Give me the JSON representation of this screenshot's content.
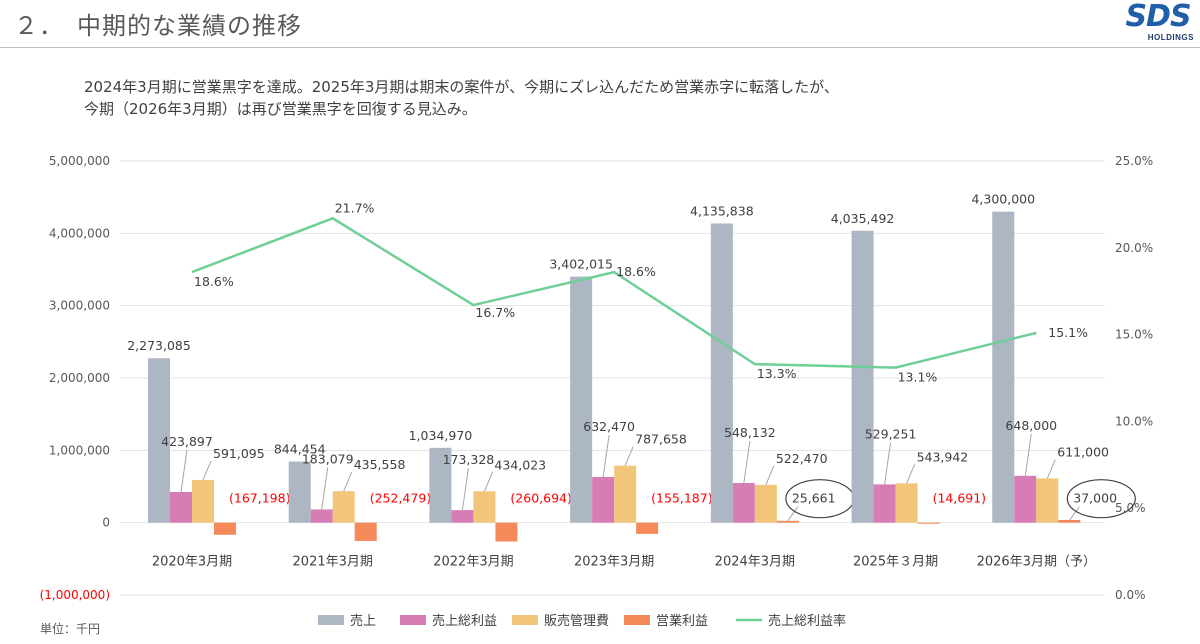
{
  "header": {
    "title": "２．　中期的な業績の推移",
    "logo": {
      "text": "SDS",
      "subtext": "HOLDINGS"
    },
    "line1": "2024年3月期に営業黒字を達成。2025年3月期は期末の案件が、今期にズレ込んだため営業赤字に転落したが、",
    "line2": "今期（2026年3月期）は再び営業黒字を回復する見込み。"
  },
  "footer": {
    "unit_note": "単位：千円"
  },
  "colors": {
    "revenue": "#adb6c3",
    "gross_profit": "#d67db5",
    "sga": "#f2c67a",
    "operating_profit": "#f4895a",
    "gross_margin": "#6fcf97",
    "negative_label": "#ff0000"
  },
  "chart_data": {
    "type": "bar",
    "categories": [
      "2020年3月期",
      "2021年3月期",
      "2022年3月期",
      "2023年3月期",
      "2024年3月期",
      "2025年３月期",
      "2026年3月期（予）"
    ],
    "series": [
      {
        "name": "売上",
        "values": [
          2273085,
          844454,
          1034970,
          3402015,
          4135838,
          4035492,
          4300000
        ],
        "labels": [
          "2,273,085",
          "844,454",
          "1,034,970",
          "3,402,015",
          "4,135,838",
          "4,035,492",
          "4,300,000"
        ]
      },
      {
        "name": "売上総利益",
        "values": [
          423897,
          183079,
          173328,
          632470,
          548132,
          529251,
          648000
        ],
        "labels": [
          "423,897",
          "183,079",
          "173,328",
          "632,470",
          "548,132",
          "529,251",
          "648,000"
        ]
      },
      {
        "name": "販売管理費",
        "values": [
          591095,
          435558,
          434023,
          787658,
          522470,
          543942,
          611000
        ],
        "labels": [
          "591,095",
          "435,558",
          "434,023",
          "787,658",
          "522,470",
          "543,942",
          "611,000"
        ]
      },
      {
        "name": "営業利益",
        "values": [
          -167198,
          -252479,
          -260694,
          -155187,
          25661,
          -14691,
          37000
        ],
        "labels": [
          "(167,198)",
          "(252,479)",
          "(260,694)",
          "(155,187)",
          "25,661",
          "(14,691)",
          "37,000"
        ]
      },
      {
        "name": "売上総利益率",
        "type": "line",
        "axis": "right",
        "values": [
          18.6,
          21.7,
          16.7,
          18.6,
          13.3,
          13.1,
          15.1
        ],
        "labels": [
          "18.6%",
          "21.7%",
          "16.7%",
          "18.6%",
          "13.3%",
          "13.1%",
          "15.1%"
        ]
      }
    ],
    "highlighted_labels": [
      "25,661",
      "37,000"
    ],
    "y_left": {
      "range": [
        -1000000,
        5000000
      ],
      "ticks": [
        "(1,000,000)",
        "0",
        "1,000,000",
        "2,000,000",
        "3,000,000",
        "4,000,000",
        "5,000,000"
      ]
    },
    "y_right": {
      "range": [
        0,
        25
      ],
      "ticks": [
        "0.0%",
        "5.0%",
        "10.0%",
        "15.0%",
        "20.0%",
        "25.0%"
      ]
    },
    "legend_position": "bottom",
    "grid": true
  }
}
